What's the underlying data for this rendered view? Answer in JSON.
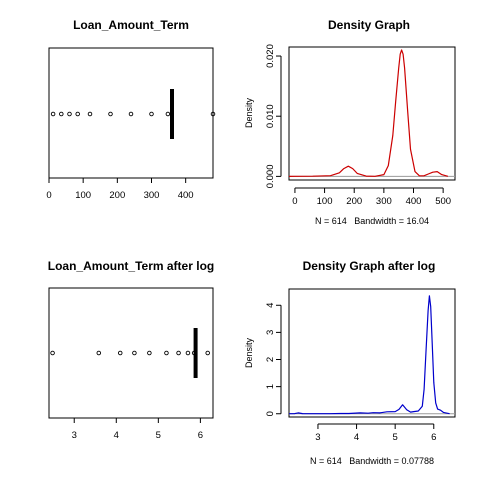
{
  "chart_data": [
    {
      "type": "boxplot",
      "title": "Loan_Amount_Term",
      "xlabel": "",
      "ylabel": "",
      "xlim": [
        0,
        480
      ],
      "xticks": [
        0,
        100,
        200,
        300,
        400
      ],
      "box": {
        "min": 360,
        "q1": 360,
        "median": 360,
        "q3": 360,
        "max": 360
      },
      "outliers": [
        12,
        36,
        60,
        84,
        120,
        180,
        240,
        300,
        348,
        480
      ]
    },
    {
      "type": "line",
      "title": "Density Graph",
      "xlabel": "N = 614   Bandwidth = 16.04",
      "ylabel": "Density",
      "xlim": [
        -20,
        540
      ],
      "ylim": [
        -0.0006,
        0.0215
      ],
      "xticks": [
        0,
        100,
        200,
        300,
        400,
        500
      ],
      "yticks": [
        0.0,
        0.01,
        0.02
      ],
      "ytick_labels": [
        "0.000",
        "0.010",
        "0.020"
      ],
      "series": [
        {
          "color": "#cc0000",
          "x": [
            -36,
            0,
            60,
            120,
            150,
            165,
            180,
            195,
            210,
            240,
            270,
            300,
            315,
            330,
            340,
            350,
            355,
            360,
            365,
            370,
            380,
            390,
            405,
            420,
            435,
            450,
            465,
            480,
            495,
            516
          ],
          "y": [
            0.0,
            2e-05,
            3e-05,
            0.00012,
            0.0006,
            0.0013,
            0.0017,
            0.0013,
            0.0005,
            5e-05,
            2e-05,
            0.0003,
            0.0018,
            0.0068,
            0.0125,
            0.018,
            0.0203,
            0.021,
            0.0203,
            0.018,
            0.011,
            0.0045,
            0.0008,
            0.0001,
            0.0001,
            0.0004,
            0.0007,
            0.0008,
            0.0003,
            2e-05
          ]
        }
      ]
    },
    {
      "type": "boxplot",
      "title": "Loan_Amount_Term after log",
      "xlabel": "",
      "ylabel": "",
      "xlim": [
        2.4,
        6.3
      ],
      "xticks": [
        3,
        4,
        5,
        6
      ],
      "box": {
        "min": 5.886,
        "q1": 5.886,
        "median": 5.886,
        "q3": 5.886,
        "max": 5.886
      },
      "outliers": [
        2.485,
        3.584,
        4.094,
        4.431,
        4.787,
        5.193,
        5.481,
        5.704,
        5.852,
        6.174
      ]
    },
    {
      "type": "line",
      "title": "Density Graph after log",
      "xlabel": "N = 614   Bandwidth = 0.07788",
      "ylabel": "Density",
      "xlim": [
        2.25,
        6.55
      ],
      "ylim": [
        -0.12,
        4.6
      ],
      "xticks": [
        3,
        4,
        5,
        6
      ],
      "yticks": [
        0,
        1,
        2,
        3,
        4
      ],
      "ytick_labels": [
        "0",
        "1",
        "2",
        "3",
        "4"
      ],
      "series": [
        {
          "color": "#0000cc",
          "x": [
            2.25,
            2.4,
            2.485,
            2.6,
            3.3,
            3.584,
            3.8,
            4.094,
            4.3,
            4.431,
            4.6,
            4.787,
            5.0,
            5.1,
            5.193,
            5.3,
            5.4,
            5.481,
            5.6,
            5.704,
            5.75,
            5.8,
            5.852,
            5.886,
            5.92,
            5.96,
            6.0,
            6.05,
            6.1,
            6.174,
            6.25,
            6.41
          ],
          "y": [
            0.0,
            0.005,
            0.03,
            0.005,
            0.0,
            0.01,
            0.01,
            0.03,
            0.02,
            0.04,
            0.03,
            0.07,
            0.08,
            0.16,
            0.33,
            0.15,
            0.06,
            0.08,
            0.1,
            0.28,
            0.9,
            2.3,
            3.8,
            4.35,
            3.95,
            2.6,
            1.15,
            0.4,
            0.17,
            0.13,
            0.05,
            0.0
          ]
        }
      ]
    }
  ]
}
